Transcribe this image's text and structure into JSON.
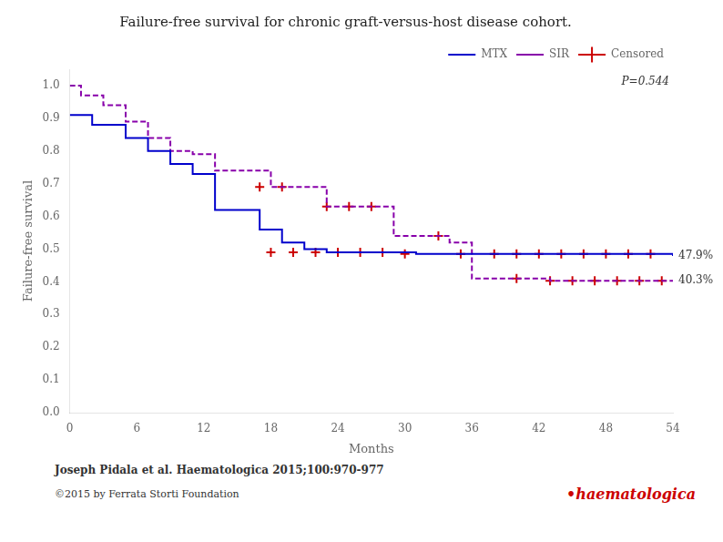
{
  "chart_data": {
    "type": "line",
    "title": "Failure-free survival for chronic graft-versus-host disease cohort.",
    "xlabel": "Months",
    "ylabel": "Failure-free survival",
    "xlim": [
      0,
      54
    ],
    "ylim": [
      0,
      1.05
    ],
    "xticks": [
      0,
      6,
      12,
      18,
      24,
      30,
      36,
      42,
      48,
      54
    ],
    "yticks": [
      {
        "value": 0,
        "label": "0.0"
      },
      0.1,
      0.2,
      0.3,
      0.4,
      0.5,
      0.6,
      0.7,
      0.8,
      0.9,
      {
        "value": 1,
        "label": "1.0"
      }
    ],
    "grid": false,
    "legend": "upper right",
    "annotations": [
      "P=0.544"
    ],
    "footer": [
      {
        "text": "Joseph Pidala et al. Haematologica 2015;100:970-977"
      },
      {
        "text": "©2015 by Ferrata Storti Foundation"
      },
      {
        "text": "•haematologica",
        "color": "#cc0000"
      }
    ],
    "series": [
      {
        "name": "MTX",
        "type": "line",
        "color": "#0000cc",
        "line_style": "solid",
        "end_label": "47.9%",
        "x": [
          0,
          1,
          2,
          4,
          5,
          6,
          7,
          8,
          9,
          10,
          11,
          12,
          13,
          14,
          17,
          18,
          19,
          20,
          21,
          22,
          23,
          24,
          25,
          26,
          27,
          28,
          29,
          30,
          31,
          34,
          35,
          36,
          38,
          39,
          40,
          42,
          43,
          44,
          45,
          46,
          47,
          48,
          49,
          50,
          51,
          52,
          53,
          54
        ],
        "values": [
          0.91,
          0.91,
          0.88,
          0.88,
          0.84,
          0.84,
          0.8,
          0.8,
          0.76,
          0.76,
          0.73,
          0.73,
          0.62,
          0.62,
          0.56,
          0.56,
          0.52,
          0.52,
          0.5,
          0.5,
          0.49,
          0.49,
          0.49,
          0.49,
          0.49,
          0.49,
          0.49,
          0.49,
          0.485,
          0.485,
          0.485,
          0.485,
          0.485,
          0.485,
          0.485,
          0.485,
          0.485,
          0.485,
          0.485,
          0.485,
          0.485,
          0.485,
          0.485,
          0.485,
          0.485,
          0.485,
          0.485,
          0.479
        ]
      },
      {
        "name": "SIR",
        "type": "line",
        "color": "#8800aa",
        "line_style": "dashed",
        "end_label": "40.3%",
        "x": [
          0,
          0,
          1,
          2,
          3,
          4,
          5,
          6,
          7,
          8,
          9,
          10,
          11,
          12,
          13,
          17,
          18,
          19,
          23,
          24,
          25,
          26,
          27,
          28,
          29,
          30,
          33,
          34,
          35,
          36,
          37,
          40,
          43,
          44,
          45,
          46,
          47,
          48,
          49,
          50,
          51,
          52,
          53,
          54
        ],
        "values": [
          1.0,
          1.0,
          0.97,
          0.97,
          0.94,
          0.94,
          0.89,
          0.89,
          0.84,
          0.84,
          0.8,
          0.8,
          0.79,
          0.79,
          0.74,
          0.74,
          0.69,
          0.69,
          0.63,
          0.63,
          0.63,
          0.63,
          0.63,
          0.63,
          0.54,
          0.54,
          0.54,
          0.52,
          0.52,
          0.41,
          0.41,
          0.41,
          0.403,
          0.403,
          0.403,
          0.403,
          0.403,
          0.403,
          0.403,
          0.403,
          0.403,
          0.403,
          0.403,
          0.403
        ]
      },
      {
        "name": "Censored",
        "type": "scatter",
        "color": "#cc0000",
        "marker": "plus",
        "x": [
          18,
          20,
          22,
          24,
          26,
          28,
          30,
          35,
          38,
          40,
          42,
          44,
          46,
          48,
          50,
          52
        ],
        "values": [
          0.49,
          0.49,
          0.49,
          0.49,
          0.49,
          0.49,
          0.485,
          0.485,
          0.485,
          0.485,
          0.485,
          0.485,
          0.485,
          0.485,
          0.485,
          0.485
        ]
      },
      {
        "name": "Censored",
        "type": "scatter",
        "color": "#cc0000",
        "marker": "plus",
        "x": [
          17,
          19,
          23,
          25,
          27,
          33,
          40,
          43,
          45,
          47,
          49,
          51,
          53
        ],
        "values": [
          0.69,
          0.69,
          0.63,
          0.63,
          0.63,
          0.54,
          0.41,
          0.403,
          0.403,
          0.403,
          0.403,
          0.403,
          0.403
        ]
      }
    ]
  }
}
